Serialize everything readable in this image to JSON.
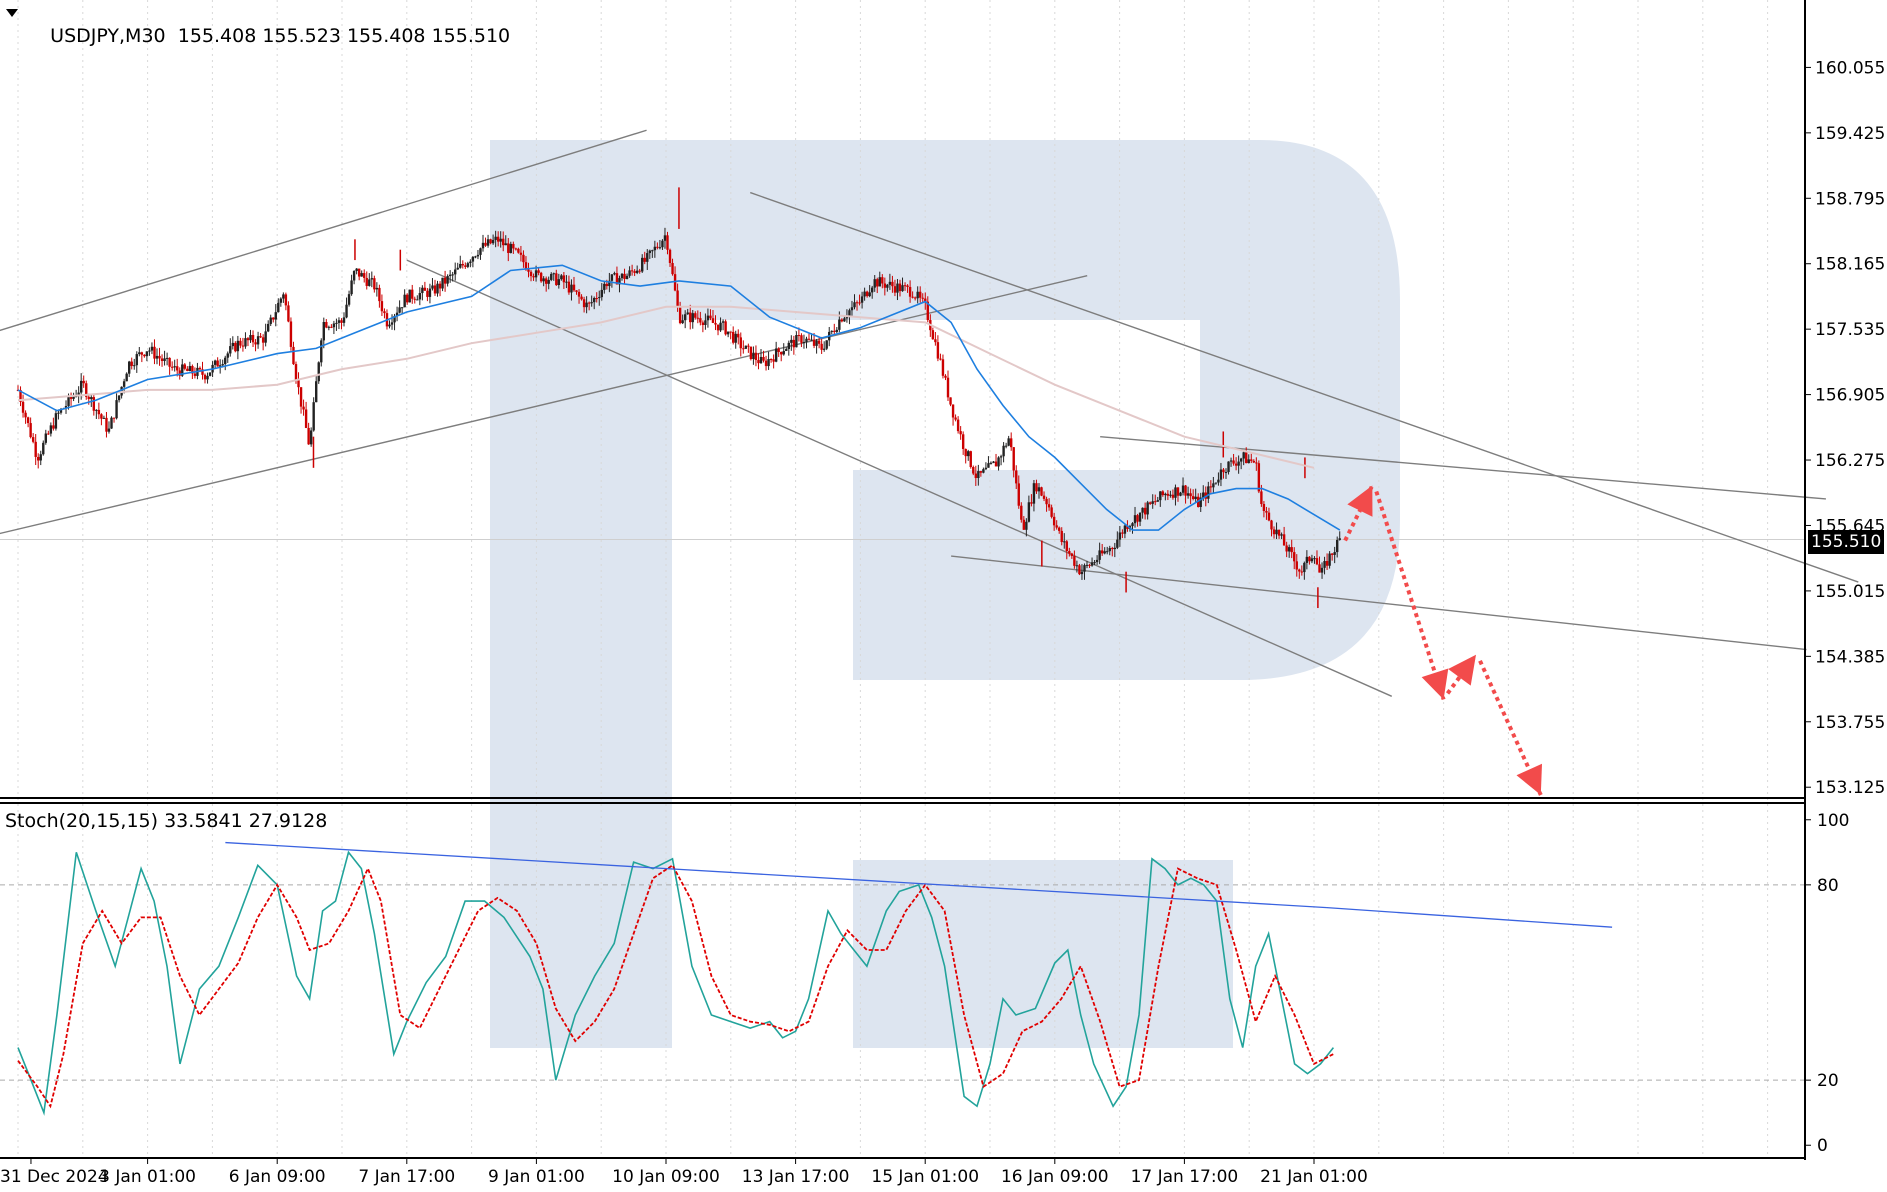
{
  "header": {
    "symbol": "USDJPY,M30",
    "ohlc": "155.408 155.523 155.408 155.510",
    "current_price": "155.510",
    "stoch_label": "Stoch(20,15,15) 33.5841 27.9128"
  },
  "colors": {
    "bull": "#222222",
    "bear": "#cc0000",
    "ma_fast": "#1e7fe0",
    "ma_slow": "#e3c8c8",
    "stoch_main": "#22a39b",
    "stoch_signal": "#e00000",
    "trend": "#7d7d7d",
    "stoch_trend": "#3a63e0",
    "forecast": "#f24b4b",
    "watermark": "#dde5f0"
  },
  "chart_data": [
    {
      "type": "candlestick",
      "title": "USDJPY,M30",
      "yticks": [
        "160.055",
        "159.425",
        "158.795",
        "158.165",
        "157.535",
        "156.905",
        "156.275",
        "155.645",
        "155.015",
        "154.385",
        "153.755",
        "153.125"
      ],
      "ylim": [
        153.05,
        160.55
      ],
      "x_labels": [
        "31 Dec 2024",
        "3 Jan 01:00",
        "6 Jan 09:00",
        "7 Jan 17:00",
        "9 Jan 01:00",
        "10 Jan 09:00",
        "13 Jan 17:00",
        "15 Jan 01:00",
        "16 Jan 09:00",
        "17 Jan 17:00",
        "21 Jan 01:00"
      ],
      "x_label_pos": [
        0.1,
        1.0,
        2.0,
        3.0,
        4.0,
        5.0,
        6.0,
        7.0,
        8.0,
        9.0,
        10.0
      ],
      "close_path": [
        [
          0.0,
          156.95
        ],
        [
          0.15,
          156.3
        ],
        [
          0.3,
          156.7
        ],
        [
          0.5,
          157.0
        ],
        [
          0.7,
          156.55
        ],
        [
          0.85,
          157.2
        ],
        [
          1.0,
          157.35
        ],
        [
          1.2,
          157.15
        ],
        [
          1.45,
          157.1
        ],
        [
          1.7,
          157.4
        ],
        [
          1.9,
          157.45
        ],
        [
          2.05,
          157.9
        ],
        [
          2.15,
          157.05
        ],
        [
          2.25,
          156.4
        ],
        [
          2.35,
          157.6
        ],
        [
          2.5,
          157.6
        ],
        [
          2.6,
          158.1
        ],
        [
          2.75,
          157.95
        ],
        [
          2.85,
          157.6
        ],
        [
          3.0,
          157.85
        ],
        [
          3.2,
          157.9
        ],
        [
          3.35,
          158.05
        ],
        [
          3.55,
          158.3
        ],
        [
          3.7,
          158.4
        ],
        [
          3.85,
          158.25
        ],
        [
          4.0,
          158.05
        ],
        [
          4.2,
          158.0
        ],
        [
          4.4,
          157.75
        ],
        [
          4.55,
          158.0
        ],
        [
          4.7,
          158.05
        ],
        [
          4.85,
          158.2
        ],
        [
          5.0,
          158.45
        ],
        [
          5.1,
          157.65
        ],
        [
          5.25,
          157.65
        ],
        [
          5.45,
          157.55
        ],
        [
          5.6,
          157.35
        ],
        [
          5.75,
          157.2
        ],
        [
          5.9,
          157.35
        ],
        [
          6.05,
          157.45
        ],
        [
          6.2,
          157.35
        ],
        [
          6.35,
          157.65
        ],
        [
          6.5,
          157.8
        ],
        [
          6.6,
          158.0
        ],
        [
          6.75,
          157.95
        ],
        [
          6.9,
          157.9
        ],
        [
          7.0,
          157.75
        ],
        [
          7.1,
          157.3
        ],
        [
          7.2,
          156.8
        ],
        [
          7.3,
          156.4
        ],
        [
          7.4,
          156.1
        ],
        [
          7.55,
          156.25
        ],
        [
          7.65,
          156.5
        ],
        [
          7.75,
          155.6
        ],
        [
          7.85,
          156.05
        ],
        [
          7.95,
          155.85
        ],
        [
          8.05,
          155.5
        ],
        [
          8.2,
          155.2
        ],
        [
          8.35,
          155.35
        ],
        [
          8.45,
          155.45
        ],
        [
          8.55,
          155.65
        ],
        [
          8.7,
          155.8
        ],
        [
          8.85,
          155.95
        ],
        [
          9.0,
          156.0
        ],
        [
          9.1,
          155.85
        ],
        [
          9.2,
          156.0
        ],
        [
          9.3,
          156.2
        ],
        [
          9.45,
          156.3
        ],
        [
          9.55,
          156.25
        ],
        [
          9.6,
          155.8
        ],
        [
          9.7,
          155.6
        ],
        [
          9.8,
          155.4
        ],
        [
          9.9,
          155.2
        ],
        [
          10.0,
          155.4
        ],
        [
          10.05,
          155.15
        ],
        [
          10.1,
          155.3
        ],
        [
          10.2,
          155.51
        ]
      ],
      "spikes": [
        [
          2.28,
          156.2,
          156.5
        ],
        [
          5.1,
          158.9,
          158.5
        ],
        [
          7.9,
          155.25,
          155.5
        ],
        [
          8.55,
          155.0,
          155.2
        ],
        [
          9.3,
          156.55,
          156.3
        ],
        [
          10.03,
          154.85,
          155.05
        ],
        [
          9.93,
          156.3,
          156.1
        ],
        [
          2.6,
          158.4,
          158.2
        ],
        [
          2.95,
          158.3,
          158.1
        ]
      ],
      "ma_fast": [
        [
          0.0,
          156.95
        ],
        [
          0.3,
          156.75
        ],
        [
          0.6,
          156.85
        ],
        [
          1.0,
          157.05
        ],
        [
          1.5,
          157.15
        ],
        [
          2.0,
          157.3
        ],
        [
          2.3,
          157.35
        ],
        [
          2.6,
          157.5
        ],
        [
          3.0,
          157.7
        ],
        [
          3.5,
          157.85
        ],
        [
          3.8,
          158.1
        ],
        [
          4.2,
          158.15
        ],
        [
          4.5,
          158.0
        ],
        [
          4.8,
          157.95
        ],
        [
          5.1,
          158.0
        ],
        [
          5.5,
          157.95
        ],
        [
          5.8,
          157.65
        ],
        [
          6.2,
          157.45
        ],
        [
          6.5,
          157.55
        ],
        [
          6.8,
          157.7
        ],
        [
          7.0,
          157.8
        ],
        [
          7.2,
          157.6
        ],
        [
          7.4,
          157.15
        ],
        [
          7.6,
          156.8
        ],
        [
          7.8,
          156.5
        ],
        [
          8.0,
          156.3
        ],
        [
          8.2,
          156.05
        ],
        [
          8.4,
          155.8
        ],
        [
          8.6,
          155.6
        ],
        [
          8.8,
          155.6
        ],
        [
          9.0,
          155.8
        ],
        [
          9.2,
          155.95
        ],
        [
          9.4,
          156.0
        ],
        [
          9.6,
          156.0
        ],
        [
          9.8,
          155.9
        ],
        [
          10.0,
          155.75
        ],
        [
          10.2,
          155.6
        ]
      ],
      "ma_slow": [
        [
          0.0,
          156.85
        ],
        [
          0.5,
          156.9
        ],
        [
          1.0,
          156.95
        ],
        [
          1.5,
          156.95
        ],
        [
          2.0,
          157.0
        ],
        [
          2.5,
          157.15
        ],
        [
          3.0,
          157.25
        ],
        [
          3.5,
          157.4
        ],
        [
          4.0,
          157.5
        ],
        [
          4.5,
          157.6
        ],
        [
          5.0,
          157.75
        ],
        [
          5.5,
          157.75
        ],
        [
          6.0,
          157.7
        ],
        [
          6.5,
          157.65
        ],
        [
          7.0,
          157.6
        ],
        [
          7.5,
          157.3
        ],
        [
          8.0,
          157.0
        ],
        [
          8.5,
          156.75
        ],
        [
          9.0,
          156.5
        ],
        [
          9.5,
          156.35
        ],
        [
          10.0,
          156.2
        ]
      ]
    },
    {
      "type": "line",
      "title": "Stoch(20,15,15)",
      "series": [
        {
          "name": "Stoch main",
          "values_ref": "stoch_main"
        },
        {
          "name": "Stoch signal",
          "values_ref": "stoch_signal"
        }
      ],
      "yticks": [
        "100",
        "80",
        "20",
        "0"
      ],
      "ylim": [
        -3,
        103
      ],
      "levels": [
        80,
        20
      ],
      "stoch_main": [
        [
          0.0,
          30
        ],
        [
          0.1,
          20
        ],
        [
          0.2,
          10
        ],
        [
          0.3,
          40
        ],
        [
          0.45,
          90
        ],
        [
          0.6,
          72
        ],
        [
          0.75,
          55
        ],
        [
          0.85,
          70
        ],
        [
          0.95,
          85
        ],
        [
          1.05,
          75
        ],
        [
          1.15,
          55
        ],
        [
          1.25,
          25
        ],
        [
          1.4,
          48
        ],
        [
          1.55,
          55
        ],
        [
          1.7,
          70
        ],
        [
          1.85,
          86
        ],
        [
          2.0,
          80
        ],
        [
          2.15,
          52
        ],
        [
          2.25,
          45
        ],
        [
          2.35,
          72
        ],
        [
          2.45,
          75
        ],
        [
          2.55,
          90
        ],
        [
          2.65,
          85
        ],
        [
          2.75,
          65
        ],
        [
          2.9,
          28
        ],
        [
          3.0,
          38
        ],
        [
          3.15,
          50
        ],
        [
          3.3,
          58
        ],
        [
          3.45,
          75
        ],
        [
          3.6,
          75
        ],
        [
          3.75,
          70
        ],
        [
          3.95,
          58
        ],
        [
          4.05,
          48
        ],
        [
          4.15,
          20
        ],
        [
          4.3,
          40
        ],
        [
          4.45,
          52
        ],
        [
          4.6,
          62
        ],
        [
          4.75,
          87
        ],
        [
          4.9,
          85
        ],
        [
          5.05,
          88
        ],
        [
          5.2,
          55
        ],
        [
          5.35,
          40
        ],
        [
          5.5,
          38
        ],
        [
          5.65,
          36
        ],
        [
          5.8,
          38
        ],
        [
          5.9,
          33
        ],
        [
          6.0,
          35
        ],
        [
          6.1,
          45
        ],
        [
          6.25,
          72
        ],
        [
          6.35,
          65
        ],
        [
          6.45,
          60
        ],
        [
          6.55,
          55
        ],
        [
          6.7,
          72
        ],
        [
          6.8,
          78
        ],
        [
          6.95,
          80
        ],
        [
          7.05,
          70
        ],
        [
          7.15,
          55
        ],
        [
          7.3,
          15
        ],
        [
          7.4,
          12
        ],
        [
          7.5,
          25
        ],
        [
          7.6,
          45
        ],
        [
          7.7,
          40
        ],
        [
          7.85,
          42
        ],
        [
          8.0,
          56
        ],
        [
          8.1,
          60
        ],
        [
          8.2,
          40
        ],
        [
          8.3,
          25
        ],
        [
          8.45,
          12
        ],
        [
          8.55,
          18
        ],
        [
          8.65,
          40
        ],
        [
          8.75,
          88
        ],
        [
          8.85,
          85
        ],
        [
          8.95,
          80
        ],
        [
          9.05,
          82
        ],
        [
          9.15,
          80
        ],
        [
          9.25,
          75
        ],
        [
          9.35,
          45
        ],
        [
          9.45,
          30
        ],
        [
          9.55,
          55
        ],
        [
          9.65,
          65
        ],
        [
          9.75,
          45
        ],
        [
          9.85,
          25
        ],
        [
          9.95,
          22
        ],
        [
          10.05,
          25
        ],
        [
          10.15,
          30
        ]
      ],
      "stoch_signal": [
        [
          0.0,
          26
        ],
        [
          0.15,
          18
        ],
        [
          0.25,
          12
        ],
        [
          0.35,
          28
        ],
        [
          0.5,
          62
        ],
        [
          0.65,
          72
        ],
        [
          0.8,
          62
        ],
        [
          0.95,
          70
        ],
        [
          1.1,
          70
        ],
        [
          1.25,
          52
        ],
        [
          1.4,
          40
        ],
        [
          1.55,
          48
        ],
        [
          1.7,
          56
        ],
        [
          1.85,
          70
        ],
        [
          2.0,
          80
        ],
        [
          2.15,
          70
        ],
        [
          2.25,
          60
        ],
        [
          2.4,
          62
        ],
        [
          2.55,
          72
        ],
        [
          2.7,
          85
        ],
        [
          2.8,
          75
        ],
        [
          2.95,
          40
        ],
        [
          3.1,
          36
        ],
        [
          3.25,
          48
        ],
        [
          3.4,
          60
        ],
        [
          3.55,
          72
        ],
        [
          3.7,
          76
        ],
        [
          3.85,
          72
        ],
        [
          4.0,
          62
        ],
        [
          4.15,
          42
        ],
        [
          4.3,
          32
        ],
        [
          4.45,
          38
        ],
        [
          4.6,
          48
        ],
        [
          4.75,
          65
        ],
        [
          4.9,
          82
        ],
        [
          5.05,
          86
        ],
        [
          5.2,
          75
        ],
        [
          5.35,
          52
        ],
        [
          5.5,
          40
        ],
        [
          5.65,
          38
        ],
        [
          5.8,
          37
        ],
        [
          5.95,
          35
        ],
        [
          6.1,
          38
        ],
        [
          6.25,
          55
        ],
        [
          6.4,
          66
        ],
        [
          6.55,
          60
        ],
        [
          6.7,
          60
        ],
        [
          6.85,
          72
        ],
        [
          7.0,
          80
        ],
        [
          7.15,
          72
        ],
        [
          7.3,
          40
        ],
        [
          7.45,
          18
        ],
        [
          7.6,
          22
        ],
        [
          7.75,
          35
        ],
        [
          7.9,
          38
        ],
        [
          8.05,
          45
        ],
        [
          8.2,
          55
        ],
        [
          8.35,
          38
        ],
        [
          8.5,
          18
        ],
        [
          8.65,
          20
        ],
        [
          8.8,
          55
        ],
        [
          8.95,
          85
        ],
        [
          9.1,
          82
        ],
        [
          9.25,
          80
        ],
        [
          9.4,
          60
        ],
        [
          9.55,
          38
        ],
        [
          9.7,
          52
        ],
        [
          9.85,
          40
        ],
        [
          10.0,
          25
        ],
        [
          10.15,
          28
        ]
      ]
    }
  ]
}
